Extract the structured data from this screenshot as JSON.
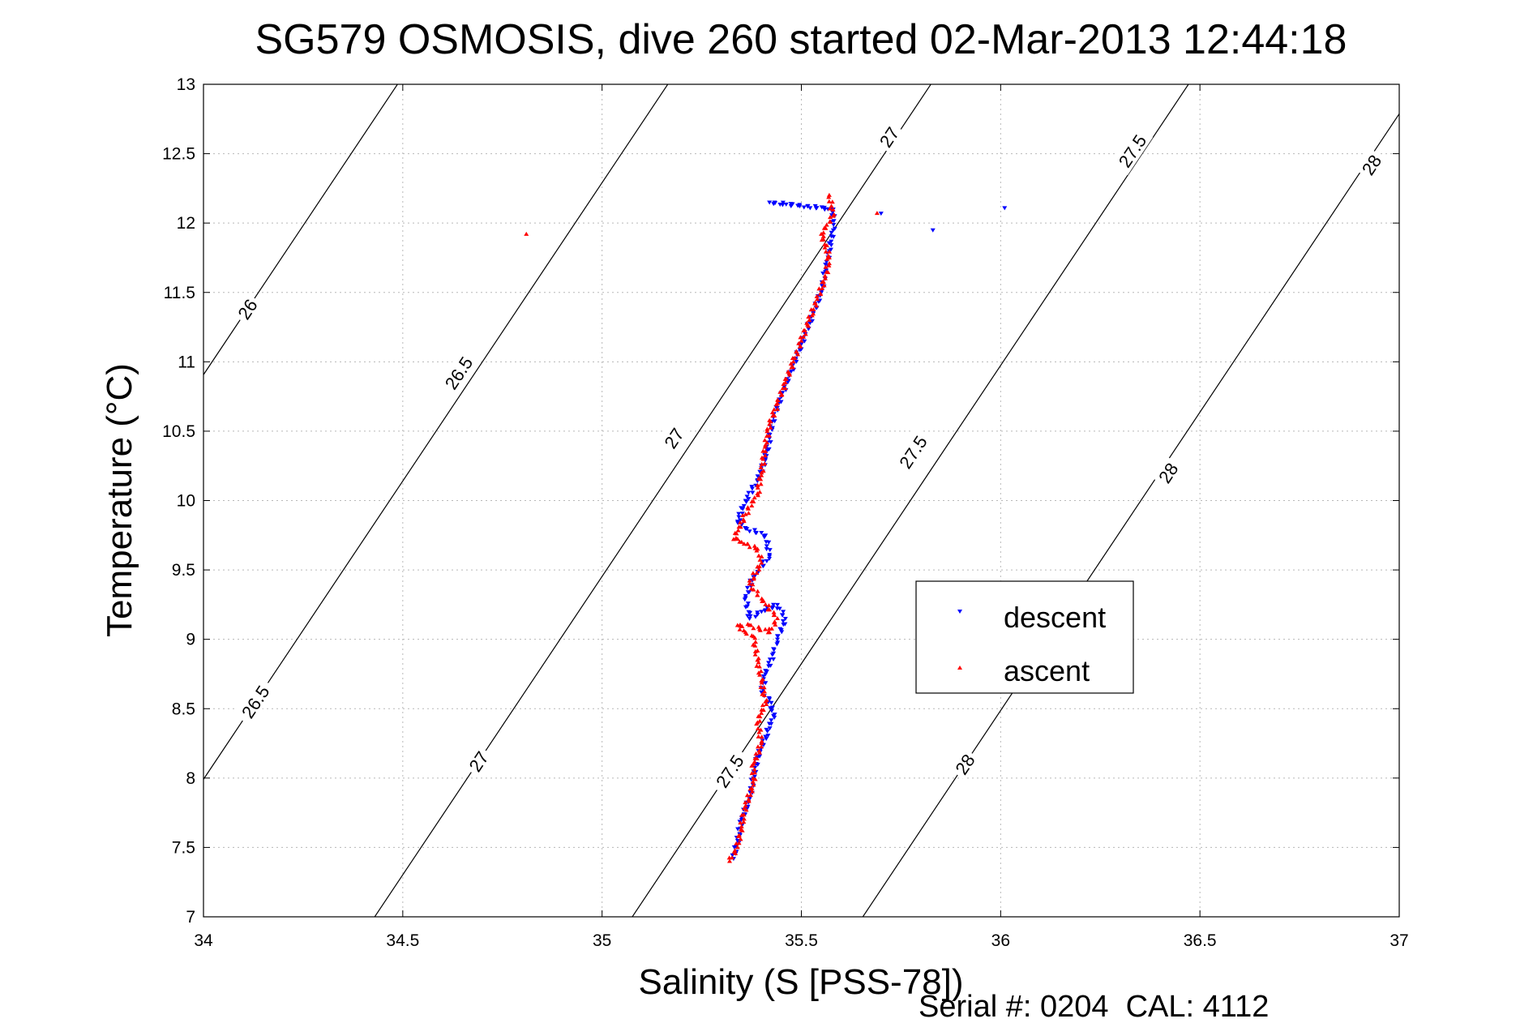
{
  "chart_data": {
    "type": "scatter",
    "title": "SG579 OSMOSIS, dive 260 started 02-Mar-2013 12:44:18",
    "xlabel": "Salinity (S [PSS-78])",
    "ylabel": "Temperature (°C)",
    "xlim": [
      34,
      37
    ],
    "ylim": [
      7,
      13
    ],
    "x_ticks": [
      "34",
      "34.5",
      "35",
      "35.5",
      "36",
      "36.5",
      "37"
    ],
    "y_ticks": [
      "7",
      "7.5",
      "8",
      "8.5",
      "9",
      "9.5",
      "10",
      "10.5",
      "11",
      "11.5",
      "12",
      "12.5",
      "13"
    ],
    "grid": true,
    "legend_position": "inside-right",
    "series": [
      {
        "name": "descent",
        "color": "#0000ff",
        "marker": "triangle-down",
        "points": [
          [
            35.33,
            7.42
          ],
          [
            35.34,
            7.55
          ],
          [
            35.35,
            7.7
          ],
          [
            35.37,
            7.85
          ],
          [
            35.38,
            8.0
          ],
          [
            35.39,
            8.15
          ],
          [
            35.41,
            8.3
          ],
          [
            35.43,
            8.45
          ],
          [
            35.42,
            8.57
          ],
          [
            35.4,
            8.62
          ],
          [
            35.41,
            8.75
          ],
          [
            35.43,
            8.9
          ],
          [
            35.44,
            9.0
          ],
          [
            35.46,
            9.15
          ],
          [
            35.44,
            9.25
          ],
          [
            35.4,
            9.2
          ],
          [
            35.37,
            9.15
          ],
          [
            35.36,
            9.3
          ],
          [
            35.38,
            9.45
          ],
          [
            35.42,
            9.6
          ],
          [
            35.41,
            9.75
          ],
          [
            35.36,
            9.8
          ],
          [
            35.34,
            9.85
          ],
          [
            35.36,
            10.0
          ],
          [
            35.39,
            10.15
          ],
          [
            35.41,
            10.3
          ],
          [
            35.42,
            10.45
          ],
          [
            35.43,
            10.6
          ],
          [
            35.45,
            10.75
          ],
          [
            35.47,
            10.9
          ],
          [
            35.49,
            11.05
          ],
          [
            35.51,
            11.2
          ],
          [
            35.53,
            11.35
          ],
          [
            35.55,
            11.5
          ],
          [
            35.56,
            11.65
          ],
          [
            35.57,
            11.8
          ],
          [
            35.58,
            11.95
          ],
          [
            35.58,
            12.1
          ],
          [
            35.42,
            12.15
          ],
          [
            35.83,
            11.95
          ],
          [
            36.01,
            12.11
          ],
          [
            35.7,
            12.07
          ]
        ]
      },
      {
        "name": "ascent",
        "color": "#ff0000",
        "marker": "triangle-up",
        "points": [
          [
            35.32,
            7.4
          ],
          [
            35.34,
            7.5
          ],
          [
            35.35,
            7.65
          ],
          [
            35.36,
            7.8
          ],
          [
            35.38,
            7.95
          ],
          [
            35.38,
            8.1
          ],
          [
            35.4,
            8.25
          ],
          [
            35.39,
            8.4
          ],
          [
            35.41,
            8.55
          ],
          [
            35.4,
            8.7
          ],
          [
            35.39,
            8.85
          ],
          [
            35.38,
            9.02
          ],
          [
            35.36,
            9.05
          ],
          [
            35.34,
            9.1
          ],
          [
            35.37,
            9.1
          ],
          [
            35.42,
            9.05
          ],
          [
            35.44,
            9.15
          ],
          [
            35.41,
            9.25
          ],
          [
            35.37,
            9.4
          ],
          [
            35.4,
            9.55
          ],
          [
            35.39,
            9.65
          ],
          [
            35.35,
            9.7
          ],
          [
            35.33,
            9.72
          ],
          [
            35.36,
            9.9
          ],
          [
            35.39,
            10.05
          ],
          [
            35.4,
            10.2
          ],
          [
            35.41,
            10.4
          ],
          [
            35.42,
            10.55
          ],
          [
            35.44,
            10.7
          ],
          [
            35.46,
            10.85
          ],
          [
            35.48,
            11.0
          ],
          [
            35.5,
            11.15
          ],
          [
            35.52,
            11.3
          ],
          [
            35.54,
            11.45
          ],
          [
            35.56,
            11.6
          ],
          [
            35.57,
            11.75
          ],
          [
            35.55,
            11.92
          ],
          [
            35.58,
            12.05
          ],
          [
            35.57,
            12.2
          ],
          [
            34.81,
            11.92
          ],
          [
            35.69,
            12.07
          ]
        ]
      }
    ],
    "contours": [
      {
        "label": "26",
        "label_points": [
          [
            34.11,
            11.38
          ]
        ]
      },
      {
        "label": "26.5",
        "label_points": [
          [
            34.13,
            8.55
          ],
          [
            34.64,
            10.92
          ]
        ]
      },
      {
        "label": "27",
        "label_points": [
          [
            34.69,
            8.12
          ],
          [
            35.18,
            10.45
          ],
          [
            35.72,
            12.62
          ]
        ]
      },
      {
        "label": "27.5",
        "label_points": [
          [
            35.32,
            8.05
          ],
          [
            35.78,
            10.35
          ],
          [
            36.33,
            12.52
          ]
        ]
      },
      {
        "label": "28",
        "label_points": [
          [
            35.91,
            8.1
          ],
          [
            36.42,
            10.2
          ],
          [
            36.93,
            12.42
          ]
        ]
      }
    ]
  },
  "legend": {
    "descent": "descent",
    "ascent": "ascent"
  },
  "footer": {
    "serial": "Serial #: 0204  CAL: 4112"
  }
}
